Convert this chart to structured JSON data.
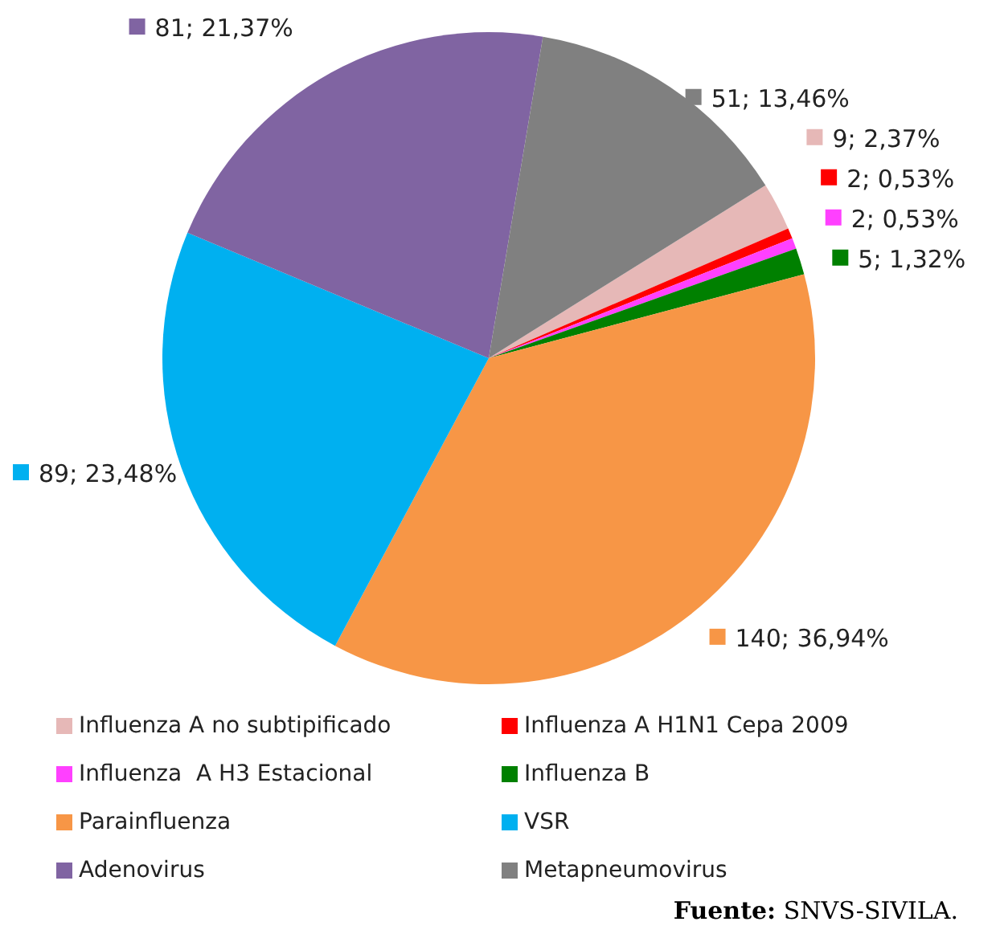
{
  "chart_data": {
    "type": "pie",
    "categories": [
      "Influenza A no subtipificado",
      "Influenza A H1N1 Cepa 2009",
      "Influenza  A H3 Estacional",
      "Influenza B",
      "Parainfluenza",
      "VSR",
      "Adenovirus",
      "Metapneumovirus"
    ],
    "values": [
      9,
      2,
      2,
      5,
      140,
      89,
      81,
      51
    ],
    "colors": [
      "#e6b8b7",
      "#ff0000",
      "#ff40ff",
      "#008000",
      "#f79646",
      "#00b0f0",
      "#8064a2",
      "#808080"
    ],
    "value_labels": [
      "9; 2,37%",
      "2; 0,53%",
      "2; 0,53%",
      "5; 1,32%",
      "140; 36,94%",
      "89; 23,48%",
      "81; 21,37%",
      "51; 13,46%"
    ],
    "legend": "bottom",
    "annotations": [
      "Fuente: SNVS-SIVILA."
    ]
  }
}
